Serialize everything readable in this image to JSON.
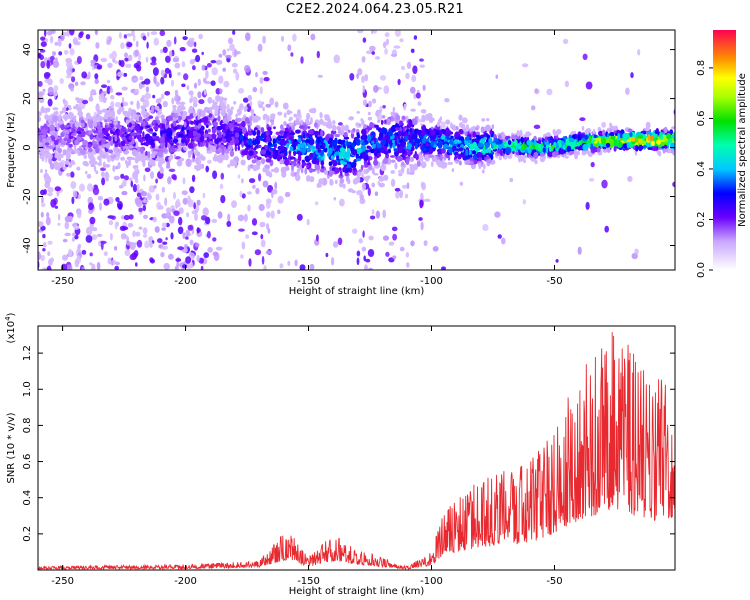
{
  "title": "C2E2.2024.064.23.05.R21",
  "chart_data": [
    {
      "type": "heatmap",
      "xlabel": "Height of straight line (km)",
      "ylabel": "Frequency (Hz)",
      "xlim": [
        -260,
        -1
      ],
      "ylim": [
        -50,
        48
      ],
      "xticks": [
        -250,
        -200,
        -150,
        -100,
        -50
      ],
      "yticks": [
        -40,
        -20,
        0,
        20,
        40
      ],
      "colorbar": {
        "label": "Normalized spectral amplitude",
        "range": [
          0,
          0.95
        ],
        "ticks": [
          0.0,
          0.2,
          0.4,
          0.6,
          0.8
        ]
      },
      "description_ridge": [
        {
          "x": -235,
          "y": 5,
          "v": 0.25
        },
        {
          "x": -210,
          "y": 5,
          "v": 0.3
        },
        {
          "x": -190,
          "y": 7,
          "v": 0.3
        },
        {
          "x": -170,
          "y": 2,
          "v": 0.35
        },
        {
          "x": -150,
          "y": 0,
          "v": 0.45
        },
        {
          "x": -135,
          "y": -3,
          "v": 0.5
        },
        {
          "x": -120,
          "y": 3,
          "v": 0.4
        },
        {
          "x": -100,
          "y": 3,
          "v": 0.45
        },
        {
          "x": -85,
          "y": 0,
          "v": 0.5
        },
        {
          "x": -70,
          "y": 1,
          "v": 0.6
        },
        {
          "x": -55,
          "y": 0,
          "v": 0.65
        },
        {
          "x": -40,
          "y": 2,
          "v": 0.7
        },
        {
          "x": -25,
          "y": 3,
          "v": 0.85
        },
        {
          "x": -10,
          "y": 3,
          "v": 0.95
        },
        {
          "x": -3,
          "y": 3,
          "v": 0.9
        }
      ]
    },
    {
      "type": "line",
      "xlabel": "Height of straight line (km)",
      "ylabel": "SNR (10 * v/v)",
      "yscale_label": "(x10",
      "yscale_exp": "4",
      "yscale_close": ")",
      "xlim": [
        -260,
        -1
      ],
      "ylim": [
        0,
        13500
      ],
      "xticks": [
        -250,
        -200,
        -150,
        -100,
        -50
      ],
      "yticks": [
        2000,
        4000,
        6000,
        8000,
        10000,
        12000
      ],
      "ytick_labels": [
        "0.2",
        "0.4",
        "0.6",
        "0.8",
        "1.0",
        "1.2"
      ],
      "color": "#e8292f",
      "envelope": [
        {
          "x": -260,
          "y": 200
        },
        {
          "x": -200,
          "y": 300
        },
        {
          "x": -170,
          "y": 500
        },
        {
          "x": -158,
          "y": 2400
        },
        {
          "x": -150,
          "y": 700
        },
        {
          "x": -140,
          "y": 2000
        },
        {
          "x": -130,
          "y": 1200
        },
        {
          "x": -110,
          "y": 200
        },
        {
          "x": -100,
          "y": 1000
        },
        {
          "x": -95,
          "y": 3500
        },
        {
          "x": -80,
          "y": 5000
        },
        {
          "x": -70,
          "y": 5500
        },
        {
          "x": -60,
          "y": 6000
        },
        {
          "x": -50,
          "y": 8000
        },
        {
          "x": -40,
          "y": 11000
        },
        {
          "x": -25,
          "y": 13500
        },
        {
          "x": -10,
          "y": 10500
        },
        {
          "x": -3,
          "y": 11500
        },
        {
          "x": -1,
          "y": 8500
        }
      ]
    }
  ]
}
